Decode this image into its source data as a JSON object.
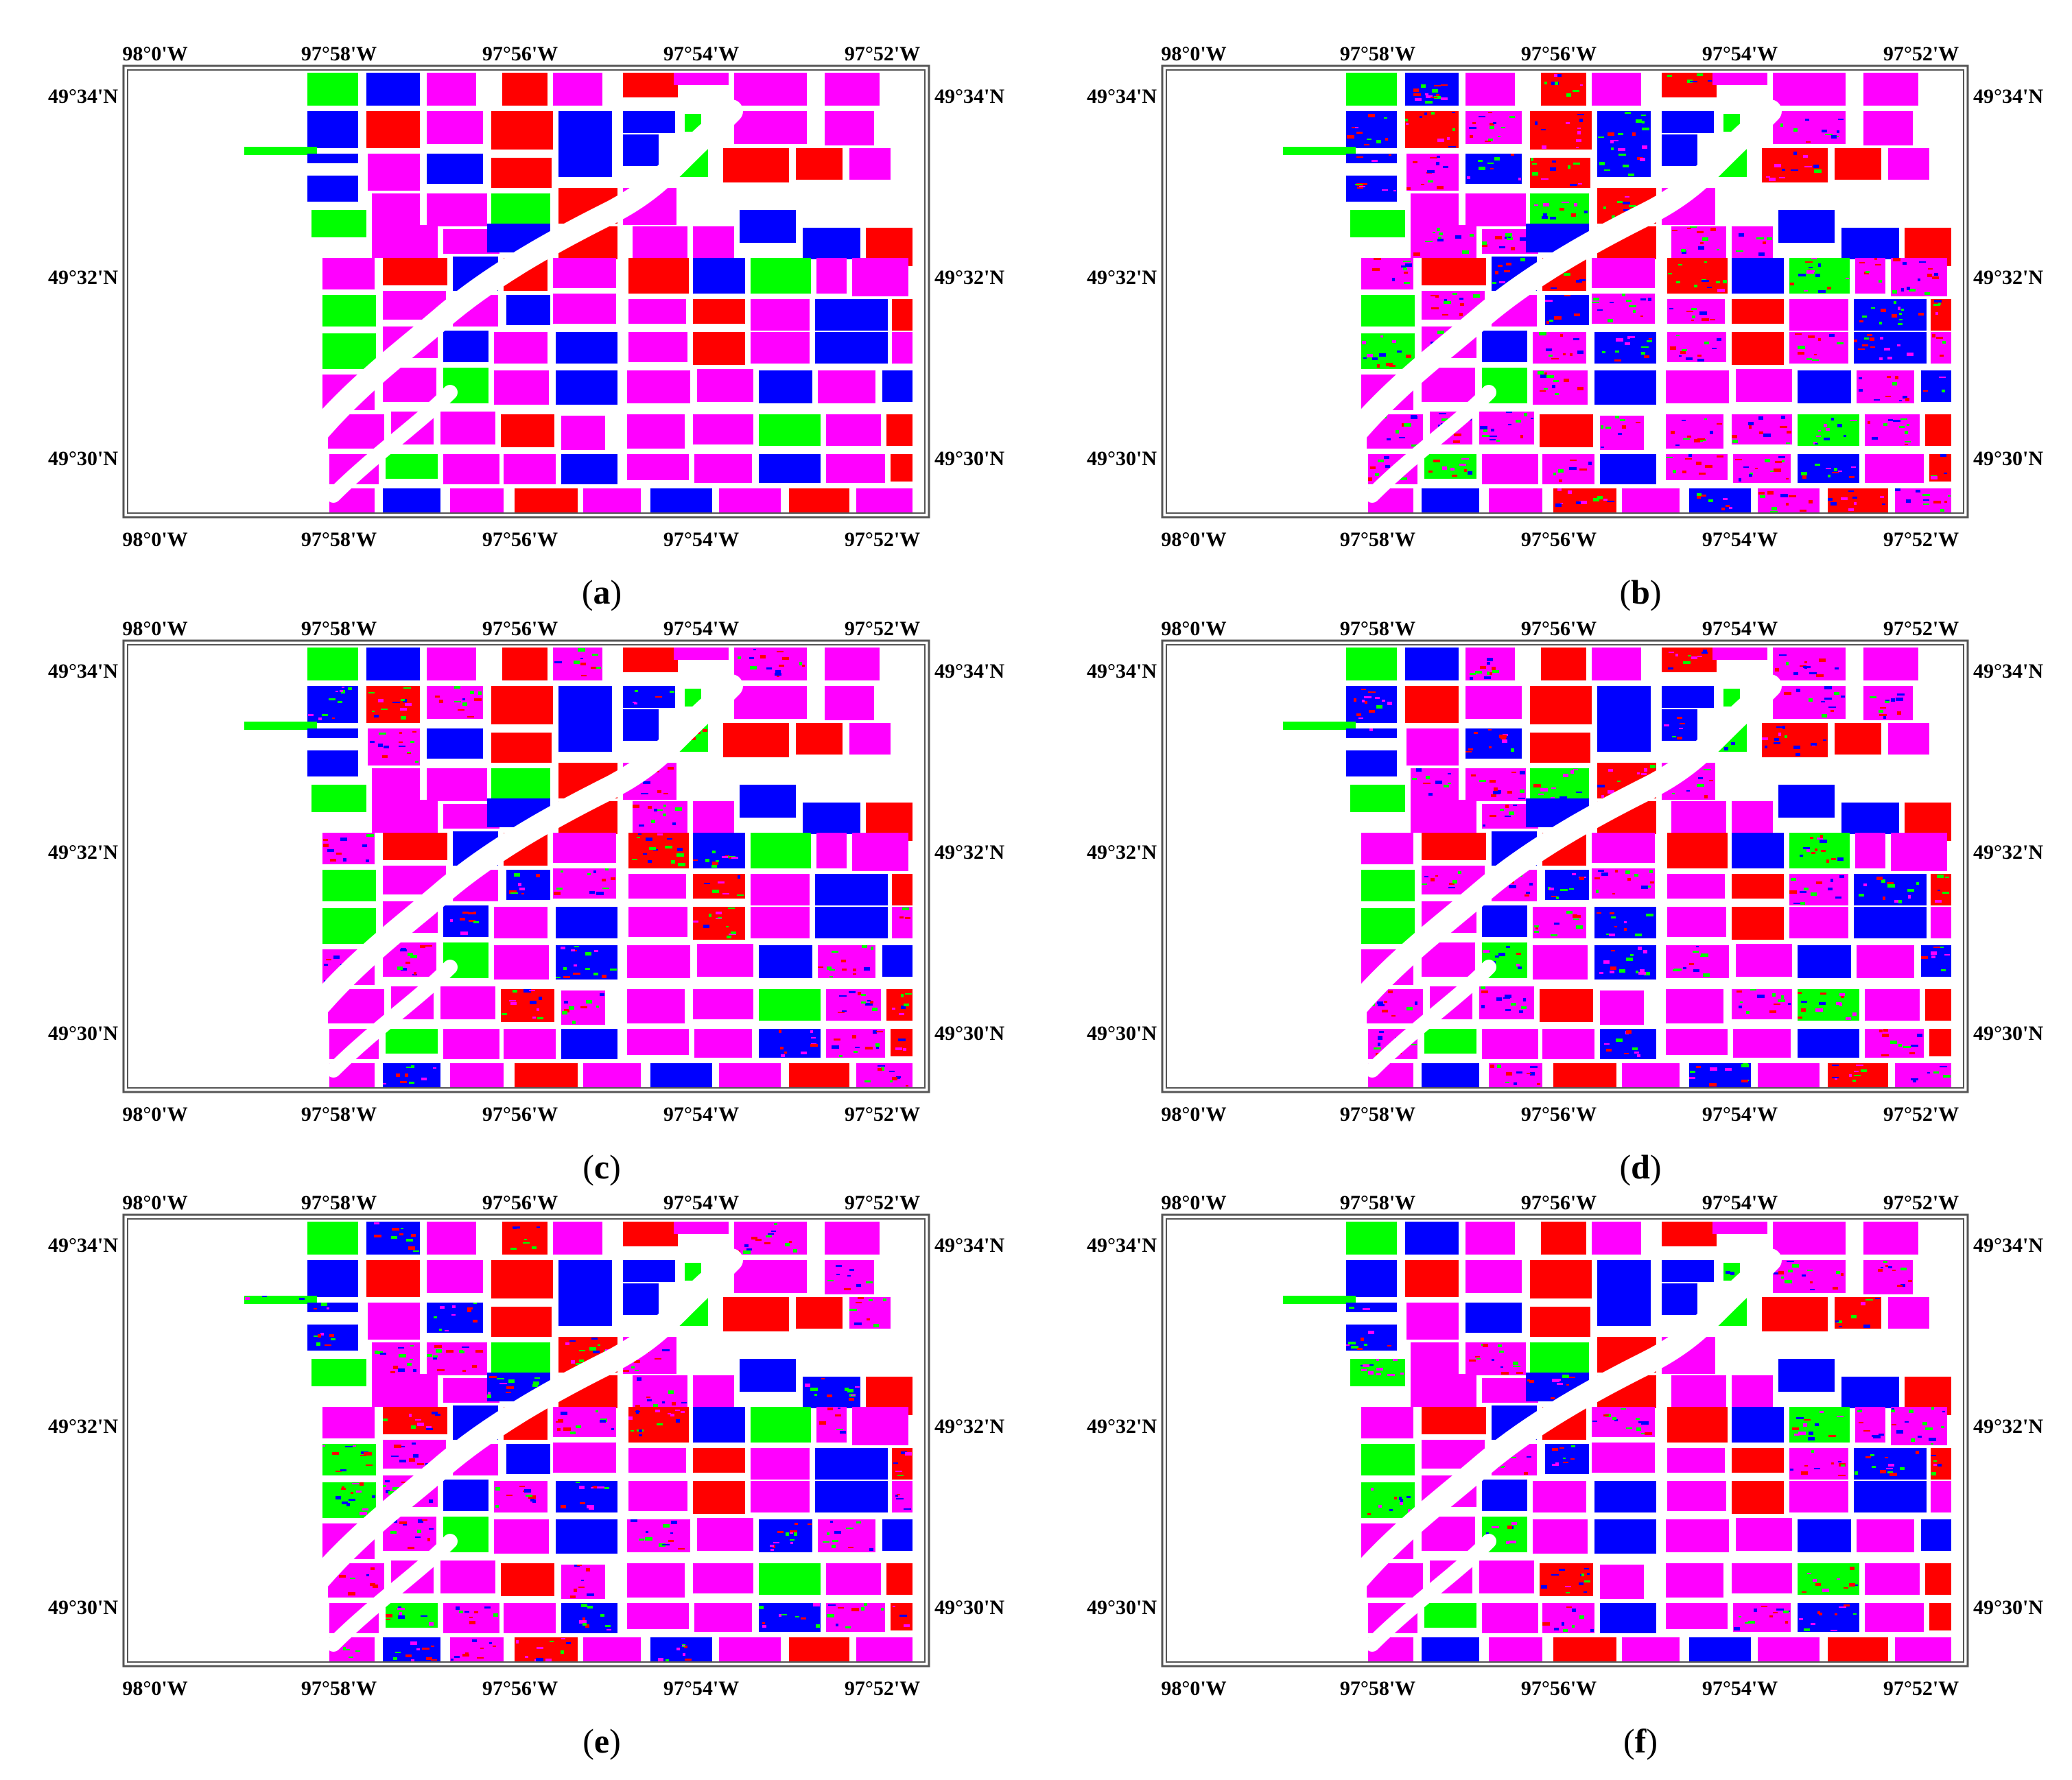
{
  "figure": {
    "colors": {
      "red": "#ff0000",
      "blue": "#0000ff",
      "magenta": "#ff00ff",
      "green": "#00ff00",
      "background": "#ffffff",
      "frame": "#555555"
    },
    "axes": {
      "top_lon_labels": [
        "98°0'W",
        "97°58'W",
        "97°56'W",
        "97°54'W",
        "97°52'W"
      ],
      "bottom_lon_labels": [
        "98°0'W",
        "97°58'W",
        "97°56'W",
        "97°54'W",
        "97°52'W"
      ],
      "lat_labels": [
        "49°34'N",
        "49°32'N",
        "49°30'N"
      ]
    },
    "panels": [
      {
        "id": "a",
        "caption_open": "(",
        "caption_letter": "a",
        "caption_close": ")",
        "noise": 0.0
      },
      {
        "id": "b",
        "caption_open": "(",
        "caption_letter": "b",
        "caption_close": ")",
        "noise": 0.55
      },
      {
        "id": "c",
        "caption_open": "(",
        "caption_letter": "c",
        "caption_close": ")",
        "noise": 0.35
      },
      {
        "id": "d",
        "caption_open": "(",
        "caption_letter": "d",
        "caption_close": ")",
        "noise": 0.3
      },
      {
        "id": "e",
        "caption_open": "(",
        "caption_letter": "e",
        "caption_close": ")",
        "noise": 0.32
      },
      {
        "id": "f",
        "caption_open": "(",
        "caption_letter": "f",
        "caption_close": ")",
        "noise": 0.26
      }
    ]
  }
}
